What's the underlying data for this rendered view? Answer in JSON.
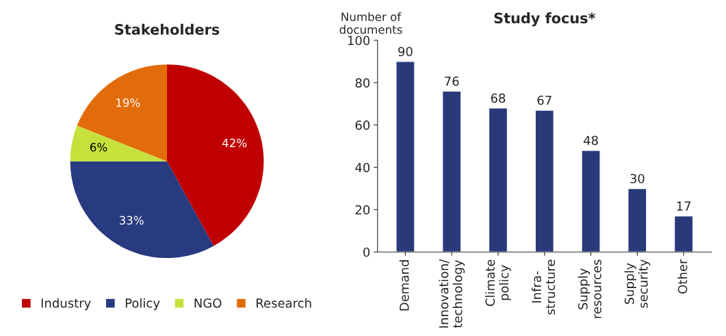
{
  "chart_data": [
    {
      "type": "pie",
      "title": "Stakeholders",
      "categories": [
        "Industry",
        "Policy",
        "NGO",
        "Research"
      ],
      "values": [
        42,
        33,
        6,
        19
      ],
      "colors": [
        "#c00000",
        "#283a80",
        "#c8e03c",
        "#e36c0a"
      ],
      "value_labels": [
        "42%",
        "33%",
        "6%",
        "19%"
      ],
      "legend": "bottom"
    },
    {
      "type": "bar",
      "title": "Study focus*",
      "ylabel": "Number of\ndocuments",
      "categories": [
        "Demand",
        "Innovation/\ntechnology",
        "Climate\npolicy",
        "Infra-\nstructure",
        "Supply\nresources",
        "Supply\nsecurity",
        "Other"
      ],
      "values": [
        90,
        76,
        68,
        67,
        48,
        30,
        17
      ],
      "color": "#283a7a",
      "ylim": [
        0,
        100
      ],
      "yticks": [
        0,
        20,
        40,
        60,
        80,
        100
      ],
      "data_labels": true,
      "grid": false
    }
  ]
}
